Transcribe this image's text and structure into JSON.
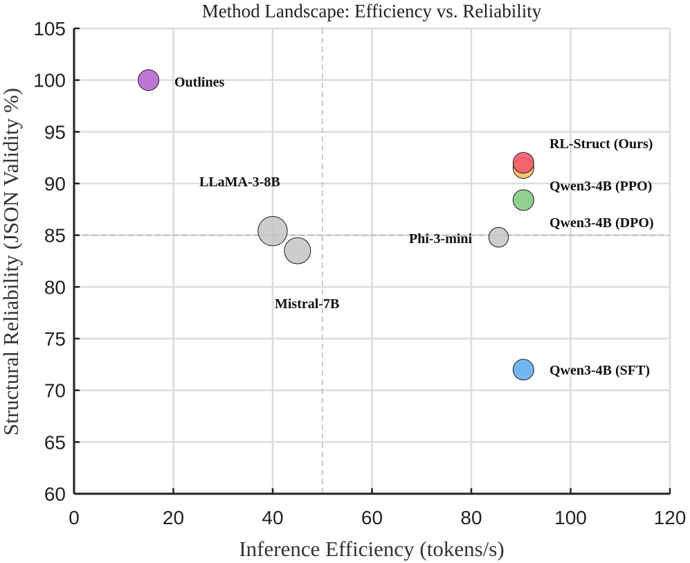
{
  "chart_data": {
    "type": "scatter",
    "title": "Method Landscape: Efficiency vs. Reliability",
    "xlabel": "Inference Efficiency (tokens/s)",
    "ylabel": "Structural Reliability (JSON Validity %)",
    "xlim": [
      0,
      120
    ],
    "ylim": [
      60,
      105
    ],
    "xticks": [
      0,
      20,
      40,
      60,
      80,
      100,
      120
    ],
    "yticks": [
      60,
      65,
      70,
      75,
      80,
      85,
      90,
      95,
      100,
      105
    ],
    "grid": true,
    "reference_lines": {
      "x": 50,
      "y": 85
    },
    "points": [
      {
        "name": "Outlines",
        "x": 15,
        "y": 100,
        "size": 1,
        "color": "#b35fd1"
      },
      {
        "name": "LLaMA-3-8B",
        "x": 40,
        "y": 85.4,
        "size": 2,
        "color": "#c4c4c4"
      },
      {
        "name": "Mistral-7B",
        "x": 45,
        "y": 83.5,
        "size": 1.6,
        "color": "#c4c4c4"
      },
      {
        "name": "Phi-3-mini",
        "x": 85.5,
        "y": 84.8,
        "size": 0.9,
        "color": "#c4c4c4"
      },
      {
        "name": "RL-Struct (Ours)",
        "x": 90.5,
        "y": 92,
        "size": 1,
        "color": "#f4536a"
      },
      {
        "name": "Qwen3-4B (PPO)",
        "x": 90.5,
        "y": 91.5,
        "size": 1,
        "color": "#f9b85a"
      },
      {
        "name": "Qwen3-4B (DPO)",
        "x": 90.5,
        "y": 88.4,
        "size": 1,
        "color": "#7dc97d"
      },
      {
        "name": "Qwen3-4B (SFT)",
        "x": 90.5,
        "y": 72,
        "size": 1,
        "color": "#5aaaf0"
      }
    ]
  }
}
